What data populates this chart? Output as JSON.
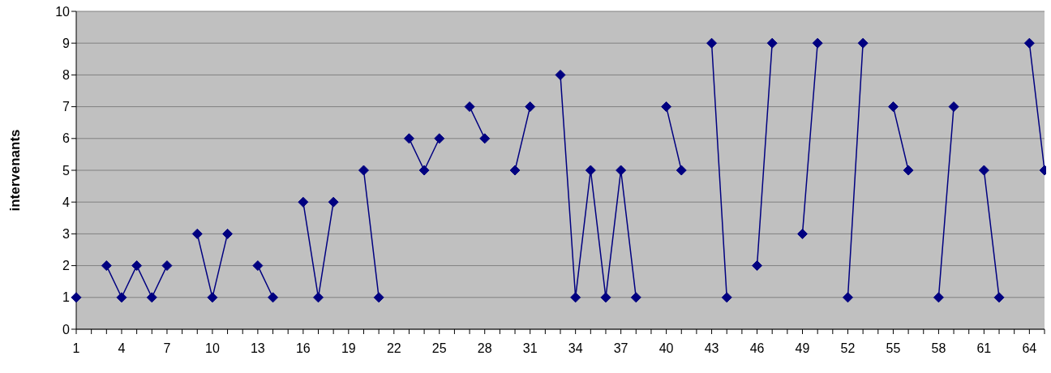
{
  "chart_data": {
    "type": "line",
    "ylabel": "intervenants",
    "categories": [
      "1",
      null,
      null,
      "4",
      null,
      null,
      "7",
      null,
      null,
      "10",
      null,
      null,
      "13",
      null,
      null,
      "16",
      null,
      null,
      "19",
      null,
      null,
      "22",
      null,
      null,
      "25",
      null,
      null,
      "28",
      null,
      null,
      "31",
      null,
      null,
      "34",
      null,
      null,
      "37",
      null,
      null,
      "40",
      null,
      null,
      "43",
      null,
      null,
      "46",
      null,
      null,
      "49",
      null,
      null,
      "52",
      null,
      null,
      "55",
      null,
      null,
      "58",
      null,
      null,
      "61",
      null,
      null,
      "64",
      null
    ],
    "series": [
      {
        "color": "#000080",
        "values": [
          1,
          null,
          2,
          1,
          2,
          1,
          2,
          null,
          3,
          1,
          3,
          null,
          2,
          1,
          null,
          4,
          1,
          4,
          null,
          5,
          1,
          null,
          6,
          5,
          6,
          null,
          7,
          6,
          null,
          5,
          7,
          null,
          8,
          1,
          5,
          1,
          5,
          1,
          null,
          7,
          5,
          null,
          9,
          1,
          null,
          2,
          9,
          null,
          3,
          9,
          null,
          1,
          9,
          null,
          7,
          5,
          null,
          1,
          7,
          null,
          5,
          1,
          null,
          9,
          5
        ]
      }
    ],
    "ylim": [
      0,
      10
    ],
    "yticks": [
      0,
      1,
      2,
      3,
      4,
      5,
      6,
      7,
      8,
      9,
      10
    ],
    "grid": "y",
    "legend": false,
    "marker": "diamond",
    "line_style": "solid"
  }
}
